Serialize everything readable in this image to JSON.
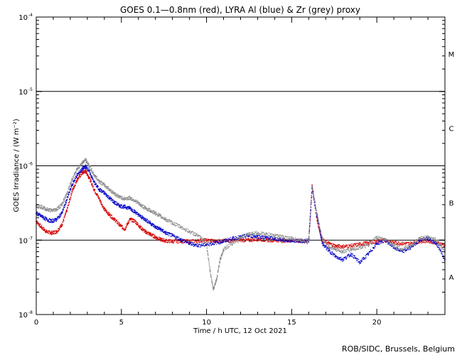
{
  "chart_data": {
    "type": "scatter",
    "title": "GOES 0.1—0.8nm (red), LYRA Al (blue) & Zr (grey) proxy",
    "xlabel": "Time / h UTC, 12 Oct 2021",
    "ylabel": "GOES Irradiance / (W m⁻²)",
    "yscale": "log",
    "xlim": [
      0,
      24
    ],
    "ylim": [
      1e-08,
      0.0001
    ],
    "x_ticks": [
      0,
      5,
      10,
      15,
      20
    ],
    "x_tick_labels": [
      "0",
      "5",
      "10",
      "15",
      "20"
    ],
    "y_ticks": [
      1e-08,
      1e-07,
      1e-06,
      1e-05,
      0.0001
    ],
    "y_tick_labels": [
      {
        "base": "10",
        "exp": "-8"
      },
      {
        "base": "10",
        "exp": "-7"
      },
      {
        "base": "10",
        "exp": "-6"
      },
      {
        "base": "10",
        "exp": "-5"
      },
      {
        "base": "10",
        "exp": "-4"
      }
    ],
    "flare_class_lines": [
      1e-07,
      1e-06,
      1e-05
    ],
    "flare_class_labels": [
      {
        "label": "A",
        "y": 3.2e-08
      },
      {
        "label": "B",
        "y": 3.2e-07
      },
      {
        "label": "C",
        "y": 3.2e-06
      },
      {
        "label": "M",
        "y": 3.2e-05
      }
    ],
    "series": [
      {
        "color": "#d40000",
        "x": [
          0.0,
          0.3,
          0.6,
          0.9,
          1.2,
          1.5,
          1.8,
          2.1,
          2.4,
          2.7,
          2.9,
          3.1,
          3.4,
          3.7,
          4.0,
          4.3,
          4.6,
          4.9,
          5.2,
          5.5,
          5.8,
          6.1,
          6.4,
          6.7,
          7.0,
          7.3,
          7.6,
          8.0,
          8.5,
          9.0,
          9.5,
          10.0,
          10.5,
          11.0,
          11.5,
          12.0,
          12.5,
          13.0,
          13.5,
          14.0,
          14.5,
          15.0,
          15.5,
          16.0,
          16.2,
          16.5,
          16.8,
          17.2,
          17.6,
          18.0,
          18.5,
          19.0,
          19.5,
          20.0,
          20.5,
          21.0,
          21.5,
          22.0,
          22.5,
          23.0,
          23.5,
          24.0
        ],
        "y": [
          1.8e-07,
          1.5e-07,
          1.3e-07,
          1.25e-07,
          1.3e-07,
          1.6e-07,
          2.5e-07,
          4.5e-07,
          6.5e-07,
          8e-07,
          8.5e-07,
          7e-07,
          4.8e-07,
          3.6e-07,
          2.6e-07,
          2.2e-07,
          1.9e-07,
          1.6e-07,
          1.4e-07,
          1.9e-07,
          1.8e-07,
          1.5e-07,
          1.3e-07,
          1.2e-07,
          1.1e-07,
          1.02e-07,
          9.8e-08,
          9.6e-08,
          9.7e-08,
          9.6e-08,
          9.8e-08,
          1e-07,
          9.7e-08,
          9.8e-08,
          9.9e-08,
          1e-07,
          1e-07,
          1.03e-07,
          1e-07,
          1e-07,
          9.8e-08,
          9.9e-08,
          9.7e-08,
          9.6e-08,
          5.5e-07,
          1.8e-07,
          1e-07,
          9e-08,
          8.3e-08,
          8.2e-08,
          8.4e-08,
          8.8e-08,
          9.2e-08,
          9.6e-08,
          1e-07,
          9.3e-08,
          9e-08,
          9e-08,
          9.6e-08,
          9.8e-08,
          9.2e-08,
          8.6e-08
        ]
      },
      {
        "color": "#0000c8",
        "x": [
          0.0,
          0.3,
          0.6,
          0.9,
          1.2,
          1.5,
          1.8,
          2.1,
          2.4,
          2.7,
          2.9,
          3.1,
          3.4,
          3.7,
          4.0,
          4.3,
          4.6,
          4.9,
          5.2,
          5.5,
          5.8,
          6.1,
          6.4,
          6.7,
          7.0,
          7.3,
          7.6,
          8.0,
          8.5,
          9.0,
          9.5,
          10.0,
          10.5,
          11.0,
          11.5,
          12.0,
          12.5,
          13.0,
          13.5,
          14.0,
          14.5,
          15.0,
          15.5,
          16.0,
          16.2,
          16.5,
          16.8,
          17.2,
          17.6,
          18.0,
          18.5,
          19.0,
          19.5,
          20.0,
          20.5,
          21.0,
          21.5,
          22.0,
          22.5,
          23.0,
          23.5,
          24.0
        ],
        "y": [
          2.3e-07,
          2.1e-07,
          1.9e-07,
          1.8e-07,
          1.9e-07,
          2.3e-07,
          3.5e-07,
          5.5e-07,
          7.5e-07,
          9e-07,
          9.8e-07,
          8.5e-07,
          6e-07,
          4.8e-07,
          4.3e-07,
          3.7e-07,
          3.2e-07,
          2.9e-07,
          2.8e-07,
          2.7e-07,
          2.4e-07,
          2.1e-07,
          1.9e-07,
          1.7e-07,
          1.5e-07,
          1.4e-07,
          1.25e-07,
          1.15e-07,
          1.02e-07,
          9e-08,
          8.5e-08,
          8.7e-08,
          9.2e-08,
          9.6e-08,
          1.05e-07,
          1.1e-07,
          1.15e-07,
          1.12e-07,
          1.08e-07,
          1.05e-07,
          1e-07,
          9.9e-08,
          9.8e-08,
          9.5e-08,
          5e-07,
          2e-07,
          9e-08,
          7.2e-08,
          6e-08,
          5.5e-08,
          6.5e-08,
          5e-08,
          6.5e-08,
          9e-08,
          1e-07,
          8e-08,
          7e-08,
          8e-08,
          1e-07,
          1.05e-07,
          9e-08,
          5.5e-08
        ]
      },
      {
        "color": "#8c8c8c",
        "x": [
          0.0,
          0.3,
          0.6,
          0.9,
          1.2,
          1.5,
          1.8,
          2.1,
          2.4,
          2.7,
          2.9,
          3.1,
          3.4,
          3.7,
          4.0,
          4.3,
          4.6,
          4.9,
          5.2,
          5.5,
          5.8,
          6.1,
          6.4,
          6.7,
          7.0,
          7.3,
          7.6,
          8.0,
          8.5,
          9.0,
          9.5,
          10.0,
          10.2,
          10.4,
          10.6,
          10.8,
          11.0,
          11.5,
          12.0,
          12.5,
          13.0,
          13.5,
          14.0,
          14.5,
          15.0,
          15.5,
          16.0,
          16.2,
          16.5,
          16.8,
          17.2,
          17.6,
          18.0,
          18.5,
          19.0,
          19.5,
          20.0,
          20.5,
          21.0,
          21.5,
          22.0,
          22.5,
          23.0,
          23.5,
          24.0
        ],
        "y": [
          2.9e-07,
          2.8e-07,
          2.6e-07,
          2.5e-07,
          2.6e-07,
          3e-07,
          4.2e-07,
          6.5e-07,
          9e-07,
          1.1e-06,
          1.2e-06,
          1e-06,
          7.5e-07,
          6.2e-07,
          5.5e-07,
          4.8e-07,
          4.2e-07,
          3.8e-07,
          3.6e-07,
          3.7e-07,
          3.4e-07,
          3e-07,
          2.7e-07,
          2.5e-07,
          2.3e-07,
          2.1e-07,
          1.9e-07,
          1.7e-07,
          1.5e-07,
          1.3e-07,
          1.15e-07,
          9e-08,
          4e-08,
          2.2e-08,
          3e-08,
          5.5e-08,
          7.5e-08,
          9e-08,
          1.1e-07,
          1.2e-07,
          1.25e-07,
          1.2e-07,
          1.15e-07,
          1.1e-07,
          1.05e-07,
          1e-07,
          1e-07,
          5.2e-07,
          2.2e-07,
          1.05e-07,
          8e-08,
          7.5e-08,
          7e-08,
          7.5e-08,
          8e-08,
          8.5e-08,
          1.1e-07,
          1e-07,
          8.5e-08,
          7.5e-08,
          8.5e-08,
          1.05e-07,
          1.1e-07,
          1e-07,
          7e-08
        ]
      }
    ]
  },
  "credit": "ROB/SIDC, Brussels, Belgium"
}
